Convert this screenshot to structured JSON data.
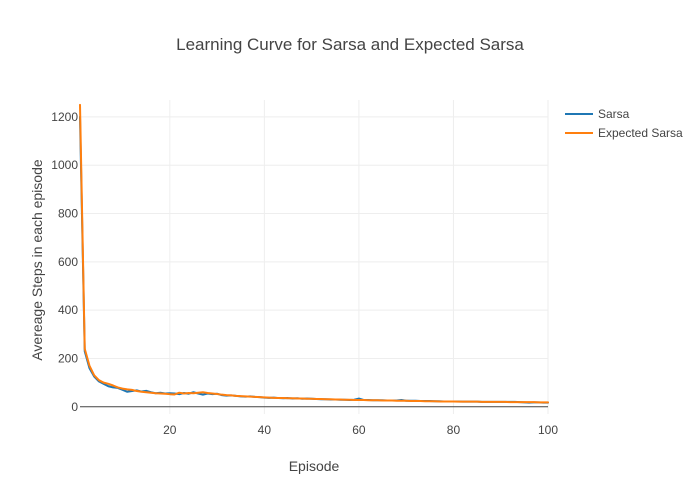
{
  "chart_data": {
    "type": "line",
    "title": "Learning Curve for Sarsa and Expected Sarsa",
    "xlabel": "Episode",
    "ylabel": "Avereage Steps in each episode",
    "xlim": [
      1,
      100
    ],
    "ylim": [
      -30,
      1270
    ],
    "xticks": [
      20,
      40,
      60,
      80,
      100
    ],
    "yticks": [
      0,
      200,
      400,
      600,
      800,
      1000,
      1200
    ],
    "grid": true,
    "legend": "top-right",
    "series": [
      {
        "name": "Sarsa",
        "color": "#1f77b4",
        "x": [
          1,
          2,
          3,
          4,
          5,
          6,
          7,
          8,
          9,
          10,
          11,
          12,
          13,
          14,
          15,
          16,
          17,
          18,
          19,
          20,
          21,
          22,
          23,
          24,
          25,
          26,
          27,
          28,
          29,
          30,
          31,
          32,
          33,
          34,
          35,
          36,
          37,
          38,
          39,
          40,
          41,
          42,
          43,
          44,
          45,
          46,
          47,
          48,
          49,
          50,
          51,
          52,
          53,
          54,
          55,
          56,
          57,
          58,
          59,
          60,
          61,
          62,
          63,
          64,
          65,
          66,
          67,
          68,
          69,
          70,
          71,
          72,
          73,
          74,
          75,
          76,
          77,
          78,
          79,
          80,
          81,
          82,
          83,
          84,
          85,
          86,
          87,
          88,
          89,
          90,
          91,
          92,
          93,
          94,
          95,
          96,
          97,
          98,
          99,
          100
        ],
        "y": [
          1200,
          230,
          160,
          125,
          105,
          95,
          85,
          80,
          78,
          70,
          62,
          65,
          68,
          63,
          66,
          60,
          56,
          58,
          55,
          56,
          55,
          52,
          57,
          54,
          60,
          55,
          50,
          55,
          52,
          54,
          48,
          46,
          47,
          45,
          43,
          42,
          43,
          41,
          40,
          38,
          37,
          38,
          36,
          35,
          36,
          34,
          35,
          33,
          34,
          33,
          32,
          31,
          31,
          30,
          30,
          29,
          29,
          28,
          29,
          34,
          28,
          28,
          27,
          27,
          27,
          26,
          26,
          26,
          28,
          25,
          25,
          25,
          24,
          24,
          24,
          23,
          23,
          22,
          22,
          22,
          22,
          21,
          21,
          21,
          21,
          20,
          20,
          20,
          20,
          20,
          20,
          20,
          20,
          19,
          18,
          17,
          18,
          18,
          17,
          17
        ]
      },
      {
        "name": "Expected Sarsa",
        "color": "#ff7f0e",
        "x": [
          1,
          2,
          3,
          4,
          5,
          6,
          7,
          8,
          9,
          10,
          11,
          12,
          13,
          14,
          15,
          16,
          17,
          18,
          19,
          20,
          21,
          22,
          23,
          24,
          25,
          26,
          27,
          28,
          29,
          30,
          31,
          32,
          33,
          34,
          35,
          36,
          37,
          38,
          39,
          40,
          41,
          42,
          43,
          44,
          45,
          46,
          47,
          48,
          49,
          50,
          51,
          52,
          53,
          54,
          55,
          56,
          57,
          58,
          59,
          60,
          61,
          62,
          63,
          64,
          65,
          66,
          67,
          68,
          69,
          70,
          71,
          72,
          73,
          74,
          75,
          76,
          77,
          78,
          79,
          80,
          81,
          82,
          83,
          84,
          85,
          86,
          87,
          88,
          89,
          90,
          91,
          92,
          93,
          94,
          95,
          96,
          97,
          98,
          99,
          100
        ],
        "y": [
          1250,
          240,
          170,
          130,
          110,
          100,
          95,
          88,
          80,
          75,
          72,
          70,
          65,
          62,
          60,
          58,
          56,
          55,
          54,
          52,
          51,
          58,
          55,
          57,
          56,
          58,
          60,
          57,
          55,
          53,
          50,
          48,
          47,
          45,
          44,
          43,
          42,
          41,
          40,
          39,
          38,
          37,
          36,
          36,
          35,
          35,
          34,
          34,
          33,
          33,
          32,
          32,
          31,
          31,
          30,
          30,
          29,
          29,
          28,
          28,
          28,
          27,
          27,
          27,
          26,
          26,
          26,
          25,
          25,
          25,
          24,
          24,
          24,
          23,
          23,
          23,
          22,
          22,
          22,
          22,
          21,
          21,
          21,
          21,
          21,
          20,
          20,
          20,
          20,
          20,
          20,
          19,
          19,
          19,
          19,
          19,
          19,
          18,
          18,
          18
        ]
      }
    ]
  }
}
